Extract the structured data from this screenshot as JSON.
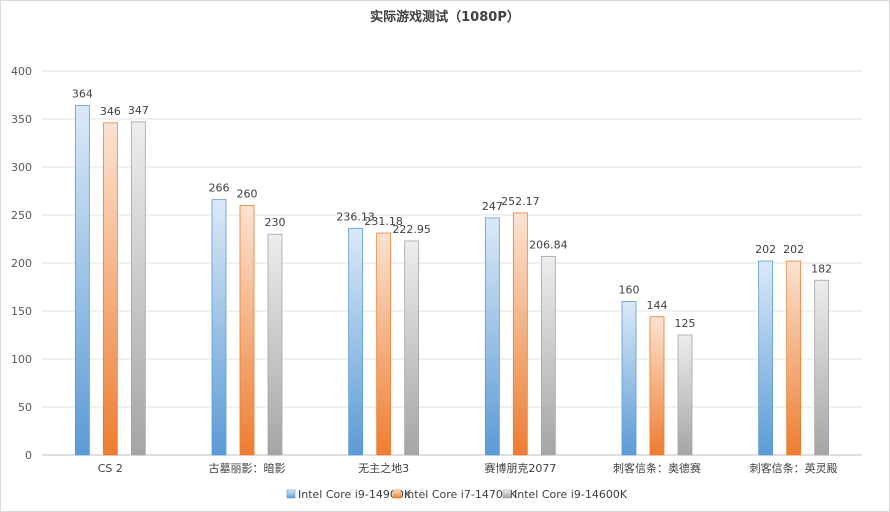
{
  "chart_data": {
    "type": "bar",
    "title": "实际游戏测试（1080P）",
    "categories": [
      "CS 2",
      "古墓丽影：暗影",
      "无主之地3",
      "赛博朋克2077",
      "刺客信条：奥德赛",
      "刺客信条：英灵殿"
    ],
    "series": [
      {
        "name": "Intel Core i9-14900K",
        "values": [
          364,
          266,
          236.13,
          247,
          160,
          202
        ],
        "labels": [
          "364",
          "266",
          "236.13",
          "247",
          "160",
          "202"
        ],
        "color": "#5b9bd5",
        "light": "#dbe9f7",
        "stroke": "#5b9bd5"
      },
      {
        "name": "Intel Core i7-14700K",
        "values": [
          346,
          260,
          231.18,
          252.17,
          144,
          202
        ],
        "labels": [
          "346",
          "260",
          "231.18",
          "252.17",
          "144",
          "202"
        ],
        "color": "#ed7d31",
        "light": "#fbe3d2",
        "stroke": "#ed7d31"
      },
      {
        "name": "Intel Core i9-14600K",
        "values": [
          347,
          230,
          222.95,
          206.84,
          125,
          182
        ],
        "labels": [
          "347",
          "230",
          "222.95",
          "206.84",
          "125",
          "182"
        ],
        "color": "#a5a5a5",
        "light": "#ededed",
        "stroke": "#a5a5a5"
      }
    ],
    "ylim": [
      0,
      400
    ],
    "yticks": [
      0,
      50,
      100,
      150,
      200,
      250,
      300,
      350,
      400
    ],
    "grid": true,
    "legend": "bottom"
  }
}
